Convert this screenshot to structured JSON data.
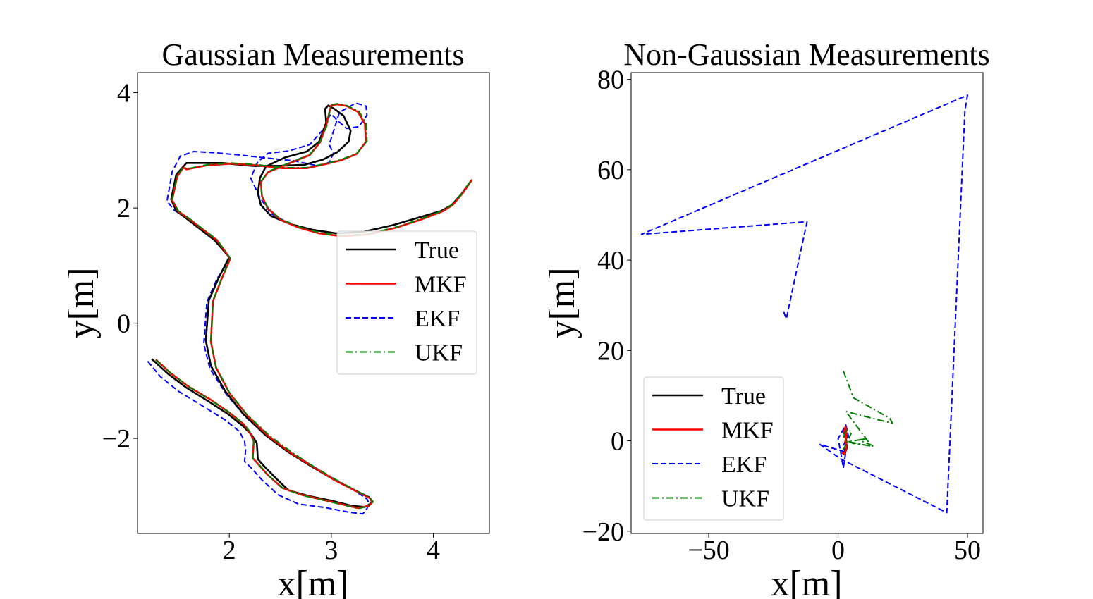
{
  "chart_data": [
    {
      "type": "line",
      "title": "Gaussian Measurements",
      "xlabel": "x[m]",
      "ylabel": "y[m]",
      "xlim": [
        1.1,
        4.55
      ],
      "ylim": [
        -3.65,
        4.35
      ],
      "xticks": [
        2,
        3,
        4
      ],
      "yticks": [
        -2,
        0,
        2,
        4
      ],
      "xtick_labels": [
        "2",
        "3",
        "4"
      ],
      "ytick_labels": [
        "−2",
        "0",
        "2",
        "4"
      ],
      "legend_position": "center-right",
      "grid": false,
      "series": [
        {
          "name": "True",
          "color": "#000000",
          "style": "solid",
          "x": [
            1.24,
            1.4,
            1.58,
            1.8,
            1.99,
            2.13,
            2.22,
            2.27,
            2.28,
            2.34,
            2.45,
            2.58,
            2.78,
            3.0,
            3.2,
            3.33,
            3.38,
            3.4,
            3.37,
            3.23,
            3.03,
            2.8,
            2.58,
            2.36,
            2.14,
            1.96,
            1.82,
            1.77,
            1.8,
            1.9,
            2.0,
            1.85,
            1.68,
            1.57,
            1.48,
            1.43,
            1.48,
            1.58,
            1.93,
            2.23,
            2.48,
            2.74,
            2.92,
            3.06,
            3.17,
            3.19,
            3.12,
            3.03,
            2.97,
            2.94,
            2.95,
            2.88,
            2.76,
            2.55,
            2.36,
            2.3,
            2.28,
            2.31,
            2.41,
            2.6,
            2.82,
            3.05,
            3.3,
            3.6,
            3.85,
            4.08,
            4.18,
            4.28,
            4.37
          ],
          "y": [
            -0.62,
            -0.88,
            -1.12,
            -1.36,
            -1.58,
            -1.78,
            -1.94,
            -2.08,
            -2.36,
            -2.48,
            -2.68,
            -2.9,
            -3.0,
            -3.08,
            -3.17,
            -3.19,
            -3.14,
            -3.09,
            -3.02,
            -2.9,
            -2.72,
            -2.48,
            -2.24,
            -1.95,
            -1.58,
            -1.18,
            -0.74,
            -0.3,
            0.4,
            0.8,
            1.15,
            1.45,
            1.68,
            1.83,
            1.95,
            2.15,
            2.58,
            2.78,
            2.78,
            2.73,
            2.73,
            2.75,
            2.84,
            2.97,
            3.15,
            3.34,
            3.6,
            3.72,
            3.78,
            3.72,
            3.48,
            3.15,
            2.98,
            2.88,
            2.72,
            2.52,
            2.25,
            2.05,
            1.86,
            1.72,
            1.62,
            1.56,
            1.58,
            1.7,
            1.83,
            1.95,
            2.05,
            2.25,
            2.47
          ]
        },
        {
          "name": "MKF",
          "color": "#ff0000",
          "style": "solid",
          "x": [
            1.28,
            1.42,
            1.6,
            1.82,
            2.0,
            2.14,
            2.21,
            2.24,
            2.23,
            2.28,
            2.38,
            2.52,
            2.71,
            2.93,
            3.12,
            3.26,
            3.37,
            3.4,
            3.38,
            3.25,
            3.05,
            2.83,
            2.61,
            2.39,
            2.18,
            2.0,
            1.87,
            1.82,
            1.84,
            1.93,
            2.01,
            1.88,
            1.71,
            1.59,
            1.5,
            1.44,
            1.49,
            1.55,
            1.58,
            1.78,
            2.02,
            2.28,
            2.52,
            2.76,
            2.94,
            3.1,
            3.25,
            3.34,
            3.33,
            3.26,
            3.15,
            3.06,
            3.0,
            2.98,
            2.95,
            2.89,
            2.79,
            2.57,
            2.38,
            2.31,
            2.32,
            2.38,
            2.5,
            2.68,
            2.88,
            3.1,
            3.36,
            3.64,
            3.88,
            4.09,
            4.19,
            4.29,
            4.38
          ],
          "y": [
            -0.63,
            -0.86,
            -1.1,
            -1.33,
            -1.55,
            -1.75,
            -1.92,
            -2.05,
            -2.34,
            -2.44,
            -2.64,
            -2.86,
            -2.98,
            -3.07,
            -3.15,
            -3.21,
            -3.17,
            -3.11,
            -3.04,
            -2.92,
            -2.74,
            -2.5,
            -2.26,
            -1.97,
            -1.61,
            -1.21,
            -0.77,
            -0.32,
            0.38,
            0.79,
            1.12,
            1.44,
            1.67,
            1.83,
            1.94,
            2.14,
            2.55,
            2.7,
            2.67,
            2.74,
            2.77,
            2.74,
            2.69,
            2.69,
            2.76,
            2.83,
            2.94,
            3.15,
            3.46,
            3.67,
            3.77,
            3.8,
            3.78,
            3.65,
            3.43,
            3.14,
            2.92,
            2.76,
            2.62,
            2.45,
            2.2,
            1.99,
            1.8,
            1.66,
            1.56,
            1.51,
            1.54,
            1.66,
            1.8,
            1.94,
            2.05,
            2.26,
            2.49
          ]
        },
        {
          "name": "EKF",
          "color": "#0000ff",
          "style": "dashed",
          "x": [
            1.2,
            1.32,
            1.5,
            1.75,
            1.96,
            2.1,
            2.15,
            2.16,
            2.15,
            2.22,
            2.32,
            2.48,
            2.68,
            2.94,
            3.17,
            3.31,
            3.35,
            3.37,
            3.35,
            3.24,
            3.05,
            2.83,
            2.6,
            2.38,
            2.16,
            1.97,
            1.81,
            1.75,
            1.78,
            1.88,
            2.01,
            1.86,
            1.68,
            1.56,
            1.46,
            1.39,
            1.44,
            1.52,
            1.65,
            1.85,
            2.1,
            2.35,
            2.63,
            2.87,
            2.98,
            3.02,
            2.98,
            3.08,
            3.24,
            3.34,
            3.35,
            3.27,
            3.15,
            3.06,
            3.0,
            2.98,
            2.93,
            2.79,
            2.58,
            2.38,
            2.28,
            2.21,
            2.3,
            2.41,
            2.6,
            2.82,
            3.05,
            3.3,
            3.6,
            3.85,
            4.08,
            4.18,
            4.28,
            4.37
          ],
          "y": [
            -0.66,
            -0.92,
            -1.18,
            -1.45,
            -1.68,
            -1.88,
            -2.05,
            -2.2,
            -2.4,
            -2.52,
            -2.72,
            -2.98,
            -3.14,
            -3.2,
            -3.28,
            -3.31,
            -3.22,
            -3.13,
            -3.05,
            -2.92,
            -2.73,
            -2.49,
            -2.25,
            -1.97,
            -1.63,
            -1.23,
            -0.79,
            -0.36,
            0.37,
            0.77,
            1.12,
            1.43,
            1.68,
            1.85,
            1.96,
            2.12,
            2.63,
            2.9,
            2.98,
            2.96,
            2.92,
            2.87,
            2.82,
            2.73,
            2.79,
            2.95,
            3.1,
            3.66,
            3.82,
            3.77,
            3.61,
            3.41,
            3.38,
            3.52,
            3.63,
            3.59,
            3.38,
            3.1,
            2.99,
            2.95,
            2.8,
            2.52,
            2.18,
            1.9,
            1.72,
            1.62,
            1.56,
            1.58,
            1.7,
            1.83,
            1.95,
            2.05,
            2.25,
            2.47
          ]
        },
        {
          "name": "UKF",
          "color": "#008000",
          "style": "dashdot",
          "x": [
            1.28,
            1.43,
            1.61,
            1.82,
            2.01,
            2.15,
            2.22,
            2.24,
            2.23,
            2.29,
            2.39,
            2.53,
            2.72,
            2.94,
            3.13,
            3.27,
            3.38,
            3.41,
            3.38,
            3.25,
            3.06,
            2.83,
            2.62,
            2.4,
            2.18,
            2.0,
            1.87,
            1.82,
            1.84,
            1.93,
            2.01,
            1.88,
            1.71,
            1.59,
            1.5,
            1.44,
            1.49,
            1.55,
            1.59,
            1.78,
            2.02,
            2.28,
            2.52,
            2.76,
            2.94,
            3.1,
            3.25,
            3.35,
            3.34,
            3.27,
            3.15,
            3.06,
            3.0,
            2.98,
            2.96,
            2.89,
            2.79,
            2.57,
            2.38,
            2.31,
            2.32,
            2.38,
            2.5,
            2.69,
            2.89,
            3.1,
            3.36,
            3.64,
            3.88,
            4.09,
            4.19,
            4.29,
            4.38
          ],
          "y": [
            -0.64,
            -0.87,
            -1.11,
            -1.34,
            -1.56,
            -1.76,
            -1.93,
            -2.06,
            -2.35,
            -2.45,
            -2.65,
            -2.87,
            -2.99,
            -3.08,
            -3.16,
            -3.22,
            -3.16,
            -3.1,
            -3.03,
            -2.91,
            -2.73,
            -2.49,
            -2.25,
            -1.96,
            -1.6,
            -1.2,
            -0.76,
            -0.31,
            0.39,
            0.8,
            1.13,
            1.45,
            1.68,
            1.84,
            1.95,
            2.15,
            2.56,
            2.71,
            2.68,
            2.75,
            2.78,
            2.75,
            2.7,
            2.7,
            2.77,
            2.84,
            2.95,
            3.16,
            3.47,
            3.68,
            3.78,
            3.81,
            3.79,
            3.66,
            3.44,
            3.15,
            2.93,
            2.77,
            2.63,
            2.46,
            2.21,
            2.0,
            1.81,
            1.67,
            1.57,
            1.52,
            1.55,
            1.67,
            1.81,
            1.95,
            2.06,
            2.27,
            2.5
          ]
        }
      ]
    },
    {
      "type": "line",
      "title": "Non-Gaussian Measurements",
      "xlabel": "x[m]",
      "ylabel": "y[m]",
      "xlim": [
        -80,
        56
      ],
      "ylim": [
        -20.5,
        81.5
      ],
      "xticks": [
        -50,
        0,
        50
      ],
      "yticks": [
        -20,
        0,
        20,
        40,
        60,
        80
      ],
      "xtick_labels": [
        "−50",
        "0",
        "50"
      ],
      "ytick_labels": [
        "−20",
        "0",
        "20",
        "40",
        "60",
        "80"
      ],
      "legend_position": "lower-left",
      "grid": false,
      "series": [
        {
          "name": "True",
          "color": "#000000",
          "style": "solid",
          "x": [
            1.5,
            2.5,
            3.4,
            3.0,
            2.2,
            2.8,
            3.4,
            2.6
          ],
          "y": [
            -2.6,
            -3.0,
            -1.5,
            0.5,
            2.0,
            3.0,
            1.0,
            -0.5
          ]
        },
        {
          "name": "MKF",
          "color": "#ff0000",
          "style": "solid",
          "x": [
            1.6,
            2.5,
            3.3,
            2.9,
            2.3,
            2.9,
            3.3,
            2.7
          ],
          "y": [
            -2.5,
            -2.9,
            -1.4,
            0.6,
            2.1,
            3.1,
            1.1,
            -0.4
          ]
        },
        {
          "name": "EKF",
          "color": "#0000ff",
          "style": "dashed",
          "x": [
            -21,
            -20,
            -12,
            -76,
            50,
            49,
            42,
            1,
            -7,
            3,
            2,
            1,
            0,
            3,
            4,
            2,
            3
          ],
          "y": [
            28.5,
            27.0,
            48.5,
            45.7,
            76.5,
            73.0,
            -15.9,
            -4.0,
            -0.8,
            -2.5,
            -6.0,
            -2.5,
            0.5,
            3.5,
            1.0,
            -1.0,
            -3.0
          ]
        },
        {
          "name": "UKF",
          "color": "#008000",
          "style": "dashdot",
          "x": [
            2,
            6,
            20,
            21,
            16,
            3,
            13,
            4,
            11,
            8,
            14,
            6,
            2,
            3,
            5,
            2
          ],
          "y": [
            15.5,
            9.5,
            5.0,
            3.9,
            4.6,
            6.5,
            -1.2,
            -0.2,
            0.5,
            0.2,
            -1.2,
            -0.6,
            0.4,
            2.6,
            1.6,
            -2.0
          ]
        }
      ]
    }
  ]
}
